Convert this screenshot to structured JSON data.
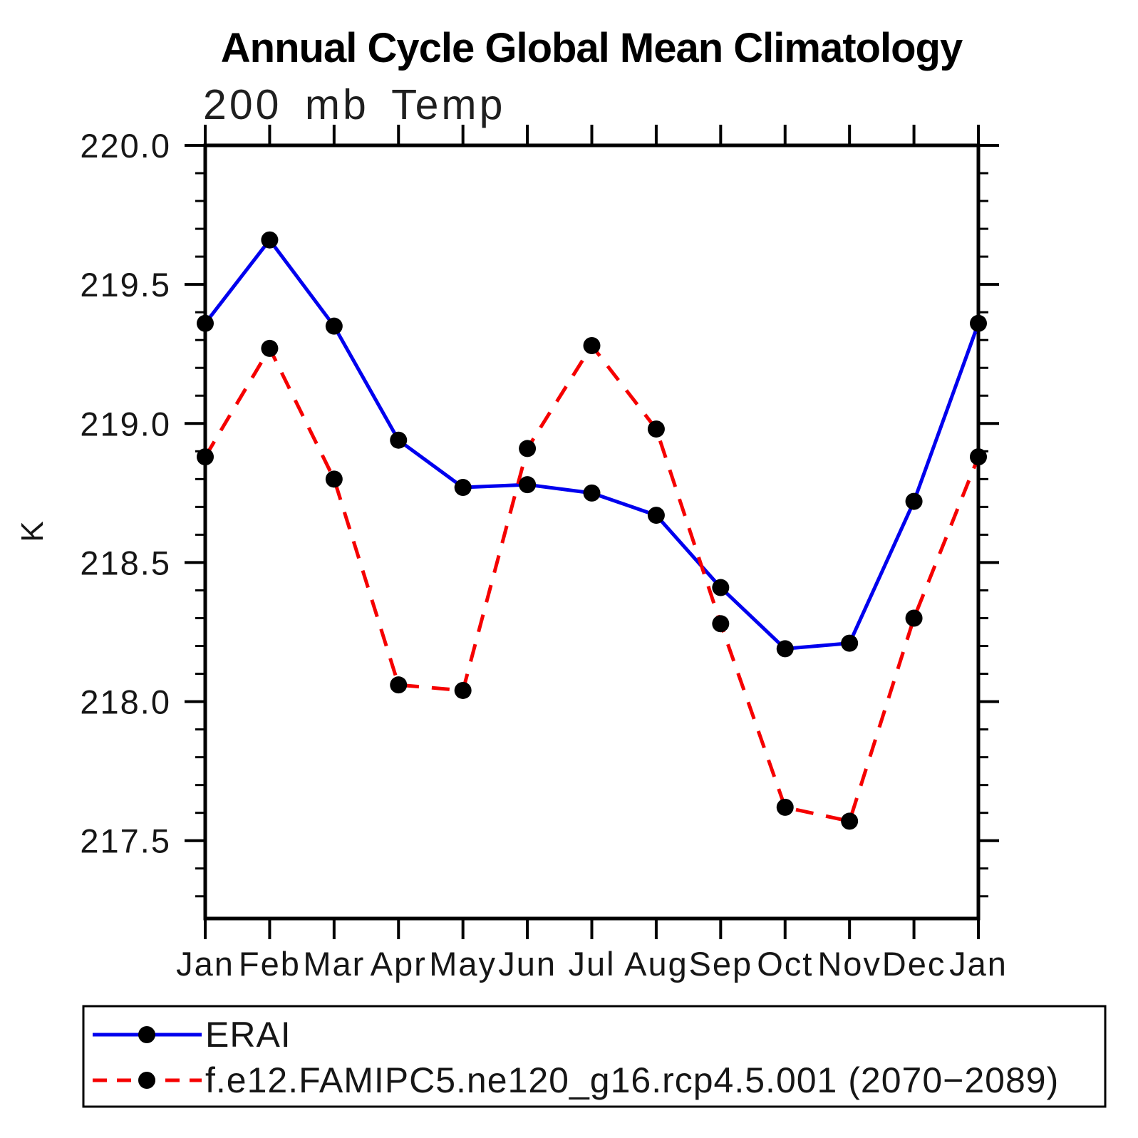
{
  "title": "Annual Cycle Global Mean Climatology",
  "subtitle": "200 mb Temp",
  "chart_data": {
    "type": "line",
    "title": "Annual Cycle Global Mean Climatology",
    "subtitle": "200 mb Temp",
    "xlabel": "",
    "ylabel": "K",
    "x": {
      "labels": [
        "Jan",
        "Feb",
        "Mar",
        "Apr",
        "May",
        "Jun",
        "Jul",
        "Aug",
        "Sep",
        "Oct",
        "Nov",
        "Dec",
        "Jan"
      ]
    },
    "ylim": [
      217.22,
      220.0
    ],
    "yticks": {
      "major": [
        220.0,
        219.5,
        219.0,
        218.5,
        218.0,
        217.5
      ],
      "major_labels": [
        "220.0",
        "219.5",
        "219.0",
        "218.5",
        "218.0",
        "217.5"
      ],
      "minor_step": 0.1
    },
    "grid": false,
    "legend_position": "bottom-left-box",
    "series": [
      {
        "name": "ERAI",
        "color": "#0000ee",
        "style": "solid",
        "marker": "circle",
        "marker_color": "#000000",
        "values": [
          219.36,
          219.66,
          219.35,
          218.94,
          218.77,
          218.78,
          218.75,
          218.67,
          218.41,
          218.19,
          218.21,
          218.72,
          219.36
        ]
      },
      {
        "name": "f.e12.FAMIPC5.ne120_g16.rcp4.5.001 (2070−2089)",
        "color": "#f50000",
        "style": "dashed",
        "marker": "circle",
        "marker_color": "#000000",
        "values": [
          218.88,
          219.27,
          218.8,
          218.06,
          218.04,
          218.91,
          219.28,
          218.98,
          218.28,
          217.62,
          217.57,
          218.3,
          218.88
        ]
      }
    ]
  }
}
